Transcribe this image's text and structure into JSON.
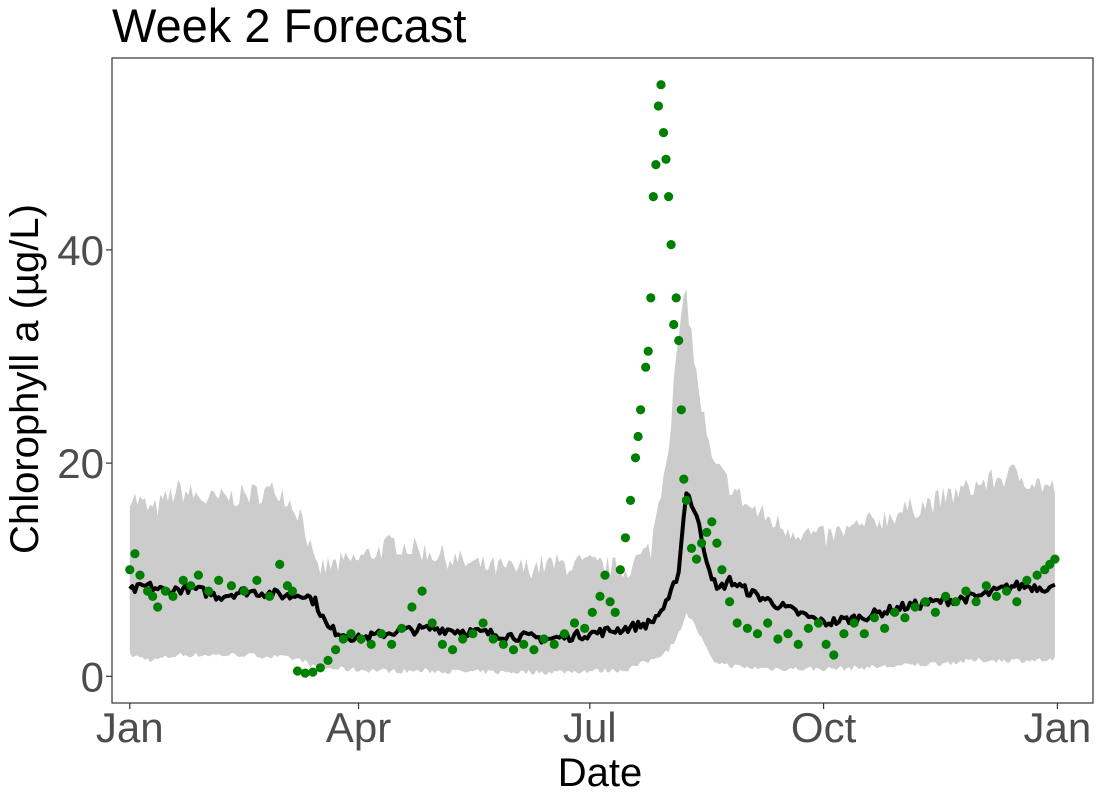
{
  "chart_data": {
    "type": "line",
    "title": "Week 2 Forecast",
    "xlabel": "Date",
    "ylabel": "Chlorophyll a (µg/L)",
    "x_axis": {
      "type": "date",
      "range": [
        "2020-12-25",
        "2022-01-15"
      ]
    },
    "ylim": [
      -2.5,
      58
    ],
    "x_ticks": [
      {
        "date": "2021-01-01",
        "label": "Jan"
      },
      {
        "date": "2021-04-01",
        "label": "Apr"
      },
      {
        "date": "2021-07-01",
        "label": "Jul"
      },
      {
        "date": "2021-10-01",
        "label": "Oct"
      },
      {
        "date": "2022-01-01",
        "label": "Jan"
      }
    ],
    "y_ticks": [
      0,
      20,
      40
    ],
    "grid": false,
    "legend": "none",
    "colors": {
      "ribbon": "#cccccc",
      "forecast": "#000000",
      "observed": "#007f00",
      "panel_border": "#333333"
    },
    "series": [
      {
        "kind": "interval",
        "points": [
          [
            "2021-01-01",
            2.0,
            17.0
          ],
          [
            "2021-01-10",
            1.5,
            15.5
          ],
          [
            "2021-01-20",
            2.0,
            17.5
          ],
          [
            "2021-02-01",
            2.0,
            16.5
          ],
          [
            "2021-02-15",
            2.0,
            17.0
          ],
          [
            "2021-03-01",
            1.8,
            17.5
          ],
          [
            "2021-03-10",
            1.5,
            15.0
          ],
          [
            "2021-03-15",
            0.8,
            10.0
          ],
          [
            "2021-04-01",
            0.6,
            11.0
          ],
          [
            "2021-04-15",
            0.5,
            12.5
          ],
          [
            "2021-05-01",
            0.5,
            11.5
          ],
          [
            "2021-05-15",
            0.4,
            10.5
          ],
          [
            "2021-06-01",
            0.4,
            10.0
          ],
          [
            "2021-06-15",
            0.4,
            10.5
          ],
          [
            "2021-07-01",
            0.5,
            10.5
          ],
          [
            "2021-07-15",
            0.6,
            10.0
          ],
          [
            "2021-07-25",
            1.5,
            12.0
          ],
          [
            "2021-08-01",
            2.5,
            22.0
          ],
          [
            "2021-08-05",
            4.0,
            32.0
          ],
          [
            "2021-08-08",
            6.0,
            36.0
          ],
          [
            "2021-08-12",
            4.5,
            28.0
          ],
          [
            "2021-08-18",
            1.5,
            20.0
          ],
          [
            "2021-08-25",
            1.0,
            18.0
          ],
          [
            "2021-09-01",
            0.8,
            16.0
          ],
          [
            "2021-09-15",
            0.7,
            14.0
          ],
          [
            "2021-10-01",
            0.7,
            13.0
          ],
          [
            "2021-10-15",
            0.8,
            14.0
          ],
          [
            "2021-11-01",
            1.0,
            15.5
          ],
          [
            "2021-11-15",
            1.2,
            16.5
          ],
          [
            "2021-12-01",
            1.5,
            18.0
          ],
          [
            "2021-12-15",
            1.5,
            19.0
          ],
          [
            "2021-12-31",
            1.5,
            17.5
          ]
        ]
      },
      {
        "name": "forecast",
        "kind": "line",
        "points": [
          [
            "2021-01-01",
            8.0
          ],
          [
            "2021-01-08",
            8.5
          ],
          [
            "2021-01-15",
            8.0
          ],
          [
            "2021-01-25",
            8.3
          ],
          [
            "2021-02-05",
            7.5
          ],
          [
            "2021-02-15",
            8.0
          ],
          [
            "2021-02-25",
            7.8
          ],
          [
            "2021-03-05",
            7.5
          ],
          [
            "2021-03-10",
            7.8
          ],
          [
            "2021-03-15",
            7.0
          ],
          [
            "2021-03-20",
            4.5
          ],
          [
            "2021-04-01",
            3.5
          ],
          [
            "2021-04-15",
            4.2
          ],
          [
            "2021-05-01",
            4.5
          ],
          [
            "2021-05-15",
            4.2
          ],
          [
            "2021-06-01",
            3.8
          ],
          [
            "2021-06-15",
            3.5
          ],
          [
            "2021-07-01",
            4.0
          ],
          [
            "2021-07-15",
            4.5
          ],
          [
            "2021-07-25",
            5.0
          ],
          [
            "2021-08-01",
            7.0
          ],
          [
            "2021-08-05",
            10.0
          ],
          [
            "2021-08-08",
            17.5
          ],
          [
            "2021-08-12",
            15.0
          ],
          [
            "2021-08-16",
            11.0
          ],
          [
            "2021-08-20",
            8.0
          ],
          [
            "2021-08-25",
            9.0
          ],
          [
            "2021-09-01",
            8.0
          ],
          [
            "2021-09-15",
            6.5
          ],
          [
            "2021-10-01",
            5.0
          ],
          [
            "2021-10-15",
            5.5
          ],
          [
            "2021-11-01",
            6.5
          ],
          [
            "2021-11-15",
            7.0
          ],
          [
            "2021-12-01",
            7.5
          ],
          [
            "2021-12-15",
            8.5
          ],
          [
            "2021-12-31",
            8.3
          ]
        ]
      },
      {
        "name": "observed",
        "kind": "scatter",
        "points": [
          [
            "2021-01-01",
            10.0
          ],
          [
            "2021-01-03",
            11.5
          ],
          [
            "2021-01-05",
            9.5
          ],
          [
            "2021-01-08",
            8.0
          ],
          [
            "2021-01-10",
            7.5
          ],
          [
            "2021-01-12",
            6.5
          ],
          [
            "2021-01-15",
            8.0
          ],
          [
            "2021-01-18",
            7.5
          ],
          [
            "2021-01-22",
            9.0
          ],
          [
            "2021-01-25",
            8.5
          ],
          [
            "2021-01-28",
            9.5
          ],
          [
            "2021-02-01",
            8.0
          ],
          [
            "2021-02-05",
            9.0
          ],
          [
            "2021-02-10",
            8.5
          ],
          [
            "2021-02-15",
            8.0
          ],
          [
            "2021-02-20",
            9.0
          ],
          [
            "2021-02-25",
            7.5
          ],
          [
            "2021-03-01",
            10.5
          ],
          [
            "2021-03-04",
            8.5
          ],
          [
            "2021-03-06",
            8.0
          ],
          [
            "2021-03-08",
            0.5
          ],
          [
            "2021-03-11",
            0.3
          ],
          [
            "2021-03-14",
            0.4
          ],
          [
            "2021-03-17",
            0.8
          ],
          [
            "2021-03-20",
            1.5
          ],
          [
            "2021-03-23",
            2.5
          ],
          [
            "2021-03-26",
            3.5
          ],
          [
            "2021-03-29",
            4.0
          ],
          [
            "2021-04-02",
            3.5
          ],
          [
            "2021-04-06",
            3.0
          ],
          [
            "2021-04-10",
            4.0
          ],
          [
            "2021-04-14",
            3.0
          ],
          [
            "2021-04-18",
            4.5
          ],
          [
            "2021-04-22",
            6.5
          ],
          [
            "2021-04-26",
            8.0
          ],
          [
            "2021-04-30",
            5.0
          ],
          [
            "2021-05-04",
            3.0
          ],
          [
            "2021-05-08",
            2.5
          ],
          [
            "2021-05-12",
            3.5
          ],
          [
            "2021-05-16",
            4.0
          ],
          [
            "2021-05-20",
            5.0
          ],
          [
            "2021-05-24",
            3.5
          ],
          [
            "2021-05-28",
            3.0
          ],
          [
            "2021-06-01",
            2.5
          ],
          [
            "2021-06-05",
            3.0
          ],
          [
            "2021-06-09",
            2.5
          ],
          [
            "2021-06-13",
            3.5
          ],
          [
            "2021-06-17",
            3.0
          ],
          [
            "2021-06-21",
            4.0
          ],
          [
            "2021-06-25",
            5.0
          ],
          [
            "2021-06-29",
            4.5
          ],
          [
            "2021-07-02",
            6.0
          ],
          [
            "2021-07-05",
            7.5
          ],
          [
            "2021-07-07",
            9.5
          ],
          [
            "2021-07-09",
            7.0
          ],
          [
            "2021-07-11",
            6.0
          ],
          [
            "2021-07-13",
            10.0
          ],
          [
            "2021-07-15",
            13.0
          ],
          [
            "2021-07-17",
            16.5
          ],
          [
            "2021-07-19",
            20.5
          ],
          [
            "2021-07-20",
            22.5
          ],
          [
            "2021-07-21",
            25.0
          ],
          [
            "2021-07-23",
            29.0
          ],
          [
            "2021-07-24",
            30.5
          ],
          [
            "2021-07-25",
            35.5
          ],
          [
            "2021-07-26",
            45.0
          ],
          [
            "2021-07-27",
            48.0
          ],
          [
            "2021-07-28",
            53.5
          ],
          [
            "2021-07-29",
            55.5
          ],
          [
            "2021-07-30",
            51.0
          ],
          [
            "2021-07-31",
            48.5
          ],
          [
            "2021-08-01",
            45.0
          ],
          [
            "2021-08-02",
            40.5
          ],
          [
            "2021-08-03",
            33.0
          ],
          [
            "2021-08-04",
            35.5
          ],
          [
            "2021-08-05",
            31.5
          ],
          [
            "2021-08-06",
            25.0
          ],
          [
            "2021-08-07",
            18.5
          ],
          [
            "2021-08-08",
            16.5
          ],
          [
            "2021-08-10",
            12.0
          ],
          [
            "2021-08-12",
            11.0
          ],
          [
            "2021-08-14",
            12.5
          ],
          [
            "2021-08-16",
            13.5
          ],
          [
            "2021-08-18",
            14.5
          ],
          [
            "2021-08-20",
            12.5
          ],
          [
            "2021-08-22",
            10.0
          ],
          [
            "2021-08-25",
            7.0
          ],
          [
            "2021-08-28",
            5.0
          ],
          [
            "2021-09-01",
            4.5
          ],
          [
            "2021-09-05",
            4.0
          ],
          [
            "2021-09-09",
            5.0
          ],
          [
            "2021-09-13",
            3.5
          ],
          [
            "2021-09-17",
            4.0
          ],
          [
            "2021-09-21",
            3.0
          ],
          [
            "2021-09-25",
            4.5
          ],
          [
            "2021-09-29",
            5.0
          ],
          [
            "2021-10-02",
            3.0
          ],
          [
            "2021-10-05",
            2.0
          ],
          [
            "2021-10-09",
            4.0
          ],
          [
            "2021-10-13",
            5.0
          ],
          [
            "2021-10-17",
            4.0
          ],
          [
            "2021-10-21",
            5.5
          ],
          [
            "2021-10-25",
            4.5
          ],
          [
            "2021-10-29",
            6.0
          ],
          [
            "2021-11-02",
            5.5
          ],
          [
            "2021-11-06",
            6.5
          ],
          [
            "2021-11-10",
            7.0
          ],
          [
            "2021-11-14",
            6.0
          ],
          [
            "2021-11-18",
            7.5
          ],
          [
            "2021-11-22",
            7.0
          ],
          [
            "2021-11-26",
            8.0
          ],
          [
            "2021-11-30",
            7.0
          ],
          [
            "2021-12-04",
            8.5
          ],
          [
            "2021-12-08",
            7.5
          ],
          [
            "2021-12-12",
            8.0
          ],
          [
            "2021-12-16",
            7.0
          ],
          [
            "2021-12-20",
            9.0
          ],
          [
            "2021-12-24",
            9.5
          ],
          [
            "2021-12-27",
            10.0
          ],
          [
            "2021-12-29",
            10.5
          ],
          [
            "2021-12-31",
            11.0
          ]
        ]
      }
    ]
  }
}
